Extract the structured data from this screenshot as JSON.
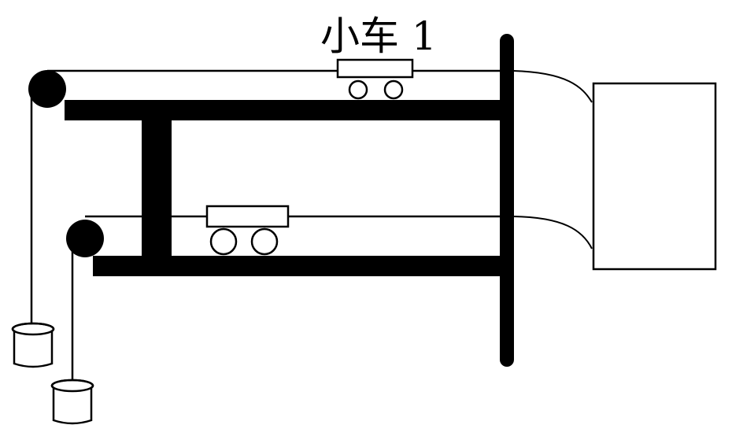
{
  "diagram": {
    "cart_label": "小车 1",
    "stroke_color": "#000000",
    "fill_color": "#ffffff"
  }
}
